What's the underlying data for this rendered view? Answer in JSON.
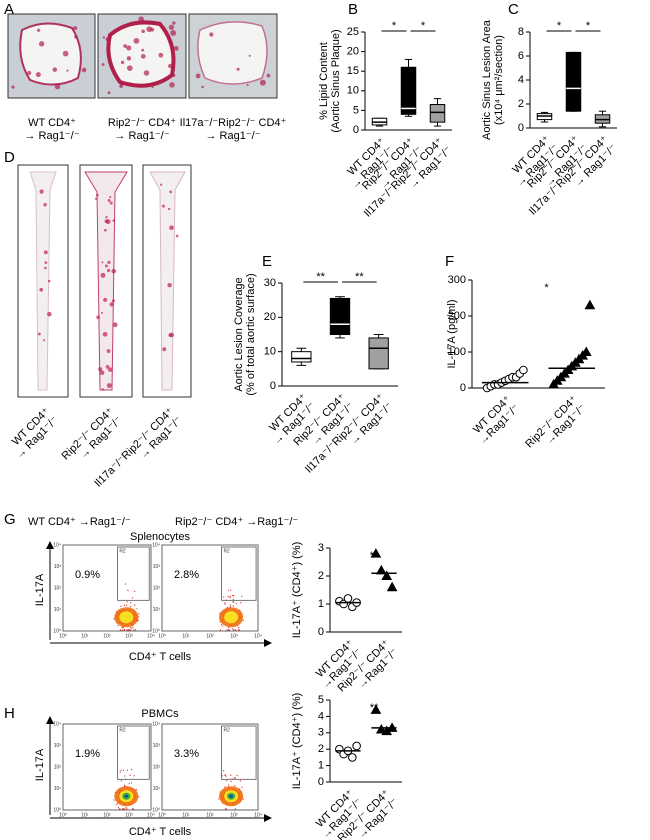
{
  "panel_labels": [
    "A",
    "B",
    "C",
    "D",
    "E",
    "F",
    "G",
    "H"
  ],
  "panel_a": {
    "captions": [
      [
        "WT CD4⁺",
        "→ Rag1⁻/⁻"
      ],
      [
        "Rip2⁻/⁻ CD4⁺",
        "→ Rag1⁻/⁻"
      ],
      [
        "Il17a⁻/⁻Rip2⁻/⁻ CD4⁺",
        "→ Rag1⁻/⁻"
      ]
    ]
  },
  "panel_d": {
    "captions": [
      [
        "WT CD4⁺",
        "→ Rag1⁻/⁻"
      ],
      [
        "Rip2⁻/⁻ CD4⁺",
        "→ Rag1⁻/⁻"
      ],
      [
        "Il17a⁻/⁻Rip2⁻/⁻ CD4⁺",
        "→ Rag1⁻/⁻"
      ]
    ]
  },
  "panel_g": {
    "headers": [
      "WT CD4⁺ →Rag1⁻/⁻",
      "Rip2⁻/⁻ CD4⁺ →Rag1⁻/⁻"
    ],
    "title": "Splenocytes",
    "percentages": [
      "0.9%",
      "2.8%"
    ],
    "gate": "R2",
    "y_label": "IL-17A",
    "x_label": "CD4⁺ T cells",
    "axis_ticks": [
      "10⁰",
      "10¹",
      "10²",
      "10³",
      "10⁴"
    ]
  },
  "panel_h": {
    "title": "PBMCs",
    "percentages": [
      "1.9%",
      "3.3%"
    ],
    "gate": "R2",
    "y_label": "IL-17A",
    "x_label": "CD4⁺ T cells",
    "axis_ticks": [
      "10⁰",
      "10¹",
      "10²",
      "10³",
      "10⁴"
    ]
  },
  "chart_data": [
    {
      "type": "box",
      "y_label": [
        "% Lipid Content",
        "(Aortic Sinus Plaque)"
      ],
      "categories": [
        [
          "WT CD4⁺",
          "→ Rag1⁻/⁻"
        ],
        [
          "Rip2⁻/⁻ CD4⁺",
          "→ Rag1⁻/⁻"
        ],
        [
          "Il17a⁻/⁻Rip2⁻/⁻ CD4⁺",
          "→ Rag1⁻/⁻"
        ]
      ],
      "boxes": [
        {
          "min": 1,
          "q1": 1.3,
          "median": 2,
          "q3": 3,
          "max": 3
        },
        {
          "min": 3.5,
          "q1": 4,
          "median": 5.5,
          "q3": 16,
          "max": 18
        },
        {
          "min": 1,
          "q1": 2,
          "median": 4.5,
          "q3": 6.5,
          "max": 8
        }
      ],
      "colors": [
        "#ffffff",
        "#000000",
        "#a0a0a0"
      ],
      "significance": [
        "*",
        "*"
      ],
      "ylim": [
        0,
        25
      ],
      "yticks": [
        0,
        5,
        10,
        15,
        20,
        25
      ]
    },
    {
      "type": "box",
      "y_label": [
        "Aortic Sinus Lesion Area",
        "(x10⁴ μm²/section)"
      ],
      "categories": [
        [
          "WT CD4⁺",
          "→ Rag1⁻/⁻"
        ],
        [
          "Rip2⁻/⁻ CD4⁺",
          "→ Rag1⁻/⁻"
        ],
        [
          "Il17a⁻/⁻Rip2⁻/⁻ CD4⁺",
          "→ Rag1⁻/⁻"
        ]
      ],
      "boxes": [
        {
          "min": 0.5,
          "q1": 0.7,
          "median": 1.0,
          "q3": 1.2,
          "max": 1.3
        },
        {
          "min": 1.4,
          "q1": 1.4,
          "median": 3.3,
          "q3": 6.3,
          "max": 6.3
        },
        {
          "min": 0.1,
          "q1": 0.4,
          "median": 0.7,
          "q3": 1.1,
          "max": 1.4
        }
      ],
      "colors": [
        "#ffffff",
        "#000000",
        "#a0a0a0"
      ],
      "significance": [
        "*",
        "*"
      ],
      "ylim": [
        0,
        8
      ],
      "yticks": [
        0,
        2,
        4,
        6,
        8
      ]
    },
    {
      "type": "box",
      "y_label": [
        "Aortic Lesion Coverage",
        "(% of total aortic surface)"
      ],
      "categories": [
        [
          "WT CD4⁺",
          "→ Rag1⁻/⁻"
        ],
        [
          "Rip2⁻/⁻ CD4⁺",
          "→ Rag1⁻/⁻"
        ],
        [
          "Il17a⁻/⁻Rip2⁻/⁻ CD4⁺",
          "→ Rag1⁻/⁻"
        ]
      ],
      "boxes": [
        {
          "min": 6,
          "q1": 7,
          "median": 8,
          "q3": 10,
          "max": 11
        },
        {
          "min": 14,
          "q1": 15,
          "median": 18,
          "q3": 25.5,
          "max": 26
        },
        {
          "min": 5,
          "q1": 5,
          "median": 11,
          "q3": 14,
          "max": 15
        }
      ],
      "colors": [
        "#ffffff",
        "#000000",
        "#a0a0a0"
      ],
      "significance": [
        "**",
        "**"
      ],
      "ylim": [
        0,
        30
      ],
      "yticks": [
        0,
        10,
        20,
        30
      ]
    },
    {
      "type": "dot",
      "y_label": [
        "IL-17A (pg/ml)"
      ],
      "categories": [
        [
          "WT CD4⁺",
          "→Rag1⁻/⁻"
        ],
        [
          "Rip2⁻/⁻ CD4⁺",
          "→Rag1⁻/⁻"
        ]
      ],
      "values": [
        [
          0,
          5,
          10,
          10,
          15,
          20,
          25,
          30,
          30,
          40,
          50
        ],
        [
          10,
          20,
          30,
          40,
          50,
          60,
          70,
          80,
          90,
          100,
          230
        ]
      ],
      "means": [
        15,
        55
      ],
      "markers": [
        "circle",
        "triangle"
      ],
      "fills": [
        "#ffffff",
        "#000000"
      ],
      "significance": [
        "*"
      ],
      "ylim": [
        0,
        300
      ],
      "yticks": [
        0,
        100,
        200,
        300
      ]
    },
    {
      "type": "dot",
      "y_label": [
        "IL-17A⁺ (CD4⁺) (%)"
      ],
      "categories": [
        [
          "WT CD4⁺",
          "→Rag1⁻/⁻"
        ],
        [
          "Rip2⁻/⁻ CD4⁺",
          "→Rag1⁻/⁻"
        ]
      ],
      "values": [
        [
          1.1,
          1.0,
          1.2,
          0.9,
          1.05
        ],
        [
          2.8,
          2.2,
          2.0,
          1.6
        ]
      ],
      "means": [
        1.05,
        2.1
      ],
      "markers": [
        "circle",
        "triangle"
      ],
      "fills": [
        "#ffffff",
        "#000000"
      ],
      "significance": [
        "**"
      ],
      "ylim": [
        0,
        3
      ],
      "yticks": [
        0,
        1,
        2,
        3
      ]
    },
    {
      "type": "dot",
      "y_label": [
        "IL-17A⁺ (CD4⁺) (%)"
      ],
      "categories": [
        [
          "WT CD4⁺",
          "→Rag1⁻/⁻"
        ],
        [
          "Rip2⁻/⁻ CD4⁺",
          "→Rag1⁻/⁻"
        ]
      ],
      "values": [
        [
          2.0,
          1.7,
          1.9,
          1.5,
          2.2
        ],
        [
          4.4,
          3.2,
          3.1,
          3.3
        ]
      ],
      "means": [
        1.9,
        3.3
      ],
      "markers": [
        "circle",
        "triangle"
      ],
      "fills": [
        "#ffffff",
        "#000000"
      ],
      "significance": [
        "**"
      ],
      "ylim": [
        0,
        5
      ],
      "yticks": [
        0,
        1,
        2,
        3,
        4,
        5
      ]
    }
  ]
}
